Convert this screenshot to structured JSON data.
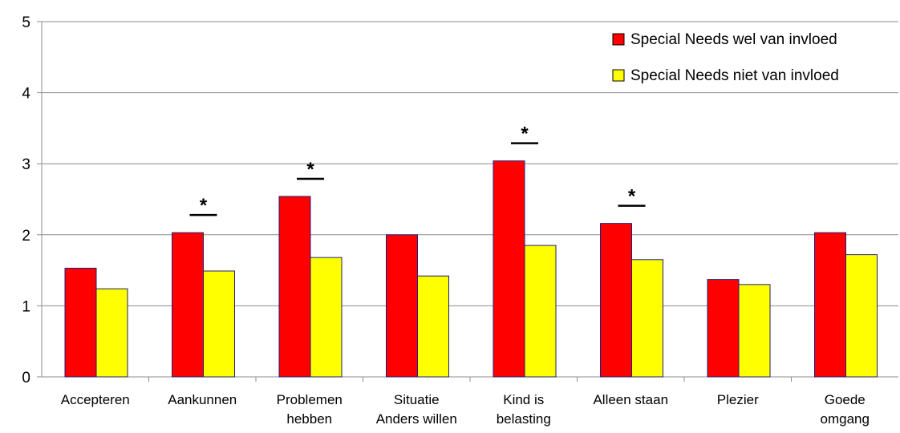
{
  "chart_data": {
    "type": "bar",
    "categories": [
      [
        "Accepteren"
      ],
      [
        "Aankunnen"
      ],
      [
        "Problemen",
        "hebben"
      ],
      [
        "Situatie",
        "Anders willen"
      ],
      [
        "Kind is",
        "belasting"
      ],
      [
        "Alleen staan"
      ],
      [
        "Plezier"
      ],
      [
        "Goede",
        "omgang"
      ]
    ],
    "series": [
      {
        "name": "Special Needs wel van invloed",
        "color": "#ff0000",
        "values": [
          1.53,
          2.03,
          2.54,
          2.0,
          3.04,
          2.16,
          1.37,
          2.03
        ]
      },
      {
        "name": "Special Needs niet van invloed",
        "color": "#ffff00",
        "values": [
          1.24,
          1.49,
          1.68,
          1.42,
          1.85,
          1.65,
          1.3,
          1.72
        ]
      }
    ],
    "significance": [
      {
        "category_index": 1,
        "label": "*"
      },
      {
        "category_index": 2,
        "label": "*"
      },
      {
        "category_index": 4,
        "label": "*"
      },
      {
        "category_index": 5,
        "label": "*"
      }
    ],
    "ylim": [
      0,
      5
    ],
    "yticks": [
      0,
      1,
      2,
      3,
      4,
      5
    ],
    "grid": true,
    "legend_position": "top-right",
    "bar_edge_color": "#1f1f7a"
  }
}
